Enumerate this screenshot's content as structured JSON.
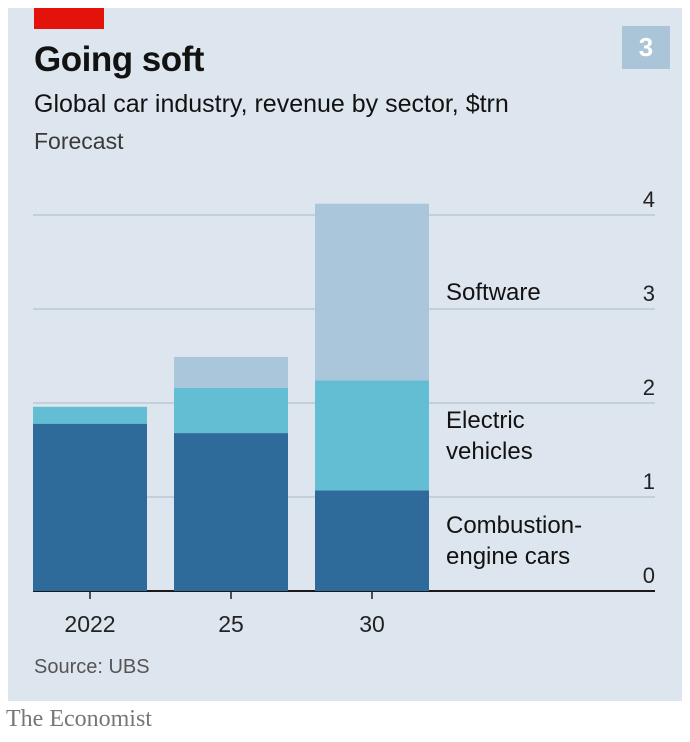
{
  "header": {
    "title": "Going soft",
    "subtitle": "Global car industry, revenue by sector, $trn",
    "note": "Forecast",
    "badge": "3"
  },
  "footer": {
    "source": "Source: UBS",
    "brand": "The Economist"
  },
  "colors": {
    "panel": "#dde6ee",
    "accent_red": "#e3120b",
    "combustion": "#2e6a9a",
    "electric": "#63bed4",
    "software": "#a9c6da",
    "gridline": "#a9b9c6",
    "baseline": "#1a1a1a"
  },
  "chart_data": {
    "type": "bar",
    "stacked": true,
    "categories": [
      "2022",
      "25",
      "30"
    ],
    "series": [
      {
        "name": "Combustion-engine cars",
        "label_lines": [
          "Combustion-",
          "engine cars"
        ],
        "values": [
          1.78,
          1.68,
          1.07
        ],
        "color": "#2e6a9a"
      },
      {
        "name": "Electric vehicles",
        "label_lines": [
          "Electric",
          "vehicles"
        ],
        "values": [
          0.18,
          0.48,
          1.17
        ],
        "color": "#63bed4"
      },
      {
        "name": "Software",
        "label_lines": [
          "Software"
        ],
        "values": [
          0.0,
          0.33,
          1.88
        ],
        "color": "#a9c6da"
      }
    ],
    "yticks": [
      0,
      1,
      2,
      3,
      4
    ],
    "ylim": [
      0,
      4
    ],
    "grid": true,
    "y_axis_side": "right",
    "legend": "direct labels to the right of the bars",
    "title": "Going soft",
    "subtitle": "Global car industry, revenue by sector, $trn",
    "xlabel": "",
    "ylabel": ""
  }
}
